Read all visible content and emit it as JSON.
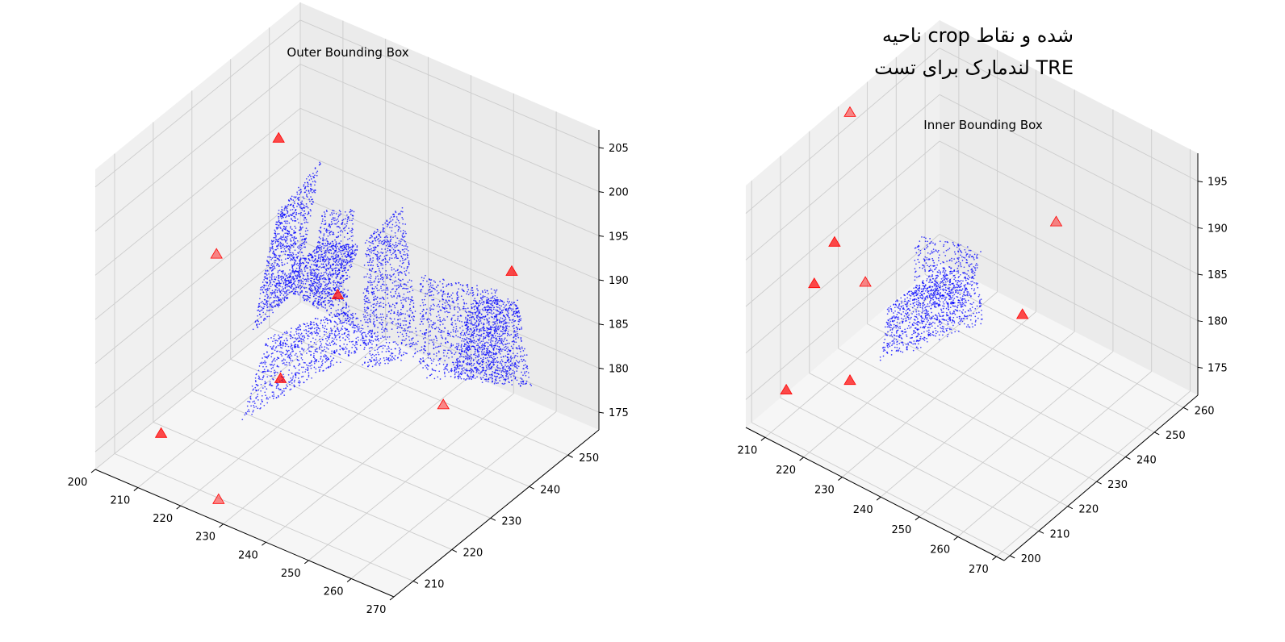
{
  "figure": {
    "title_line1": "ناحیه crop شده و نقاط",
    "title_line2": "لندمارک برای تست TRE"
  },
  "colors": {
    "points": "#0000ff",
    "landmarks": "#ff0000",
    "pane": "#f2f2f2",
    "grid": "#cccccc"
  },
  "chart_data": [
    {
      "type": "scatter",
      "projection": "3d",
      "title": "Outer Bounding Box",
      "xlim": [
        200,
        270
      ],
      "ylim": [
        205,
        258
      ],
      "zlim": [
        173,
        207
      ],
      "x_ticks": [
        200,
        210,
        220,
        230,
        240,
        250,
        260,
        270
      ],
      "y_ticks": [
        210,
        220,
        230,
        240,
        250
      ],
      "z_ticks": [
        175,
        180,
        185,
        190,
        195,
        200,
        205
      ],
      "grid": true,
      "series": [
        {
          "marker": "dot",
          "color": "#0000ff",
          "description": "surface point cloud"
        },
        {
          "marker": "triangle",
          "color": "#ff0000",
          "points": [
            [
              204,
              248,
              196
            ],
            [
              213,
              222,
              194
            ],
            [
              226,
              239,
              186
            ],
            [
              228,
              222,
              183
            ],
            [
              228,
              206,
              175
            ],
            [
              210,
              211,
              177
            ],
            [
              255,
              252,
              190
            ],
            [
              258,
              231,
              183
            ]
          ]
        }
      ]
    },
    {
      "type": "scatter",
      "projection": "3d",
      "title": "Inner Bounding Box",
      "xlim": [
        205,
        272
      ],
      "ylim": [
        198,
        265
      ],
      "zlim": [
        172,
        198
      ],
      "x_ticks": [
        210,
        220,
        230,
        240,
        250,
        260,
        270
      ],
      "y_ticks": [
        200,
        210,
        220,
        230,
        240,
        250,
        260
      ],
      "z_ticks": [
        175,
        180,
        185,
        190,
        195
      ],
      "grid": true,
      "series": [
        {
          "marker": "dot",
          "color": "#0000ff",
          "description": "cropped surface point cloud"
        },
        {
          "marker": "triangle",
          "color": "#ff0000",
          "points": [
            [
              210,
              215,
              184
            ],
            [
              218,
              222,
              184
            ],
            [
              208,
              208,
              174
            ],
            [
              220,
              214,
              176
            ],
            [
              248,
              248,
              190
            ],
            [
              246,
              239,
              182
            ],
            [
              216,
              214,
              190
            ],
            [
              208,
              230,
              198
            ]
          ]
        }
      ]
    }
  ]
}
